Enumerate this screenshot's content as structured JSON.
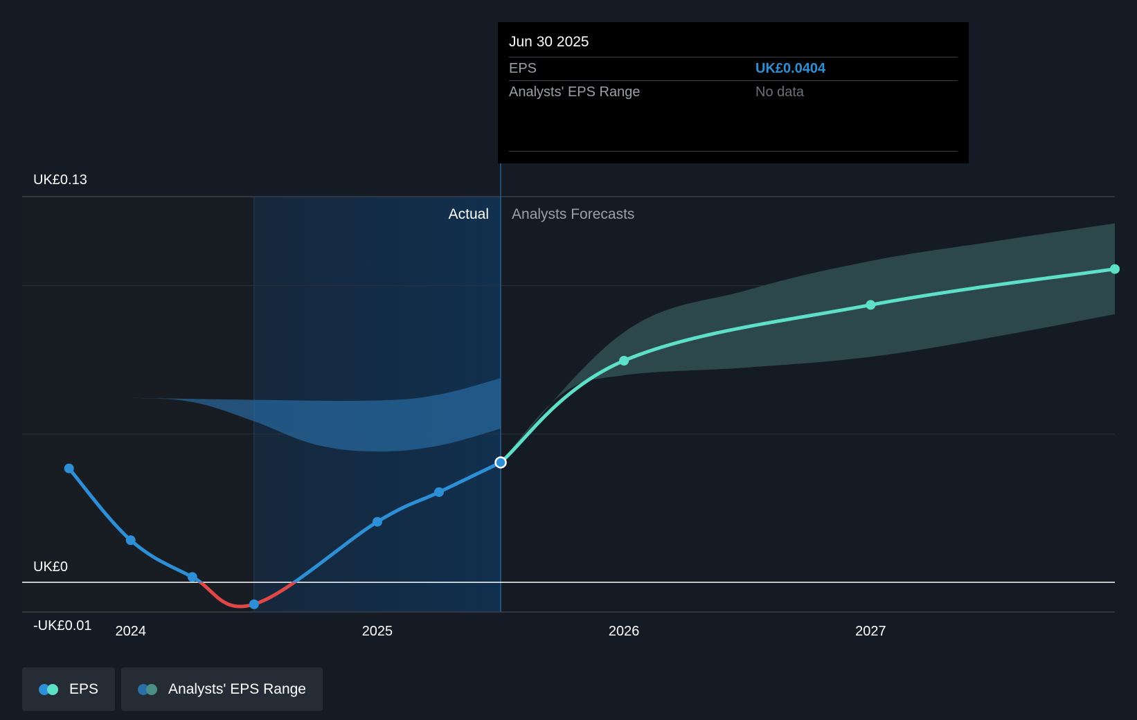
{
  "chart_data": {
    "type": "line",
    "y_ticks": [
      {
        "value": 0.13,
        "label": "UK£0.13"
      },
      {
        "value": 0,
        "label": "UK£0"
      },
      {
        "value": -0.01,
        "label": "-UK£0.01"
      }
    ],
    "x_ticks": [
      {
        "value": 2024.0,
        "label": "2024"
      },
      {
        "value": 2025.0,
        "label": "2025"
      },
      {
        "value": 2026.0,
        "label": "2026"
      },
      {
        "value": 2027.0,
        "label": "2027"
      }
    ],
    "ylim": [
      -0.01,
      0.13
    ],
    "xlim": [
      2023.56,
      2027.99
    ],
    "grid_values": [
      0.1,
      0.05
    ],
    "region_labels": {
      "actual": "Actual",
      "forecast": "Analysts Forecasts"
    },
    "divider_x": 2025.5,
    "highlight_start": 2024.5,
    "series": [
      {
        "name": "EPS",
        "kind": "actual",
        "color": "#2d8fd6",
        "negative_color": "#e04848",
        "points": [
          {
            "x": 2023.75,
            "y": 0.0384
          },
          {
            "x": 2024.0,
            "y": 0.0142
          },
          {
            "x": 2024.25,
            "y": 0.0018
          },
          {
            "x": 2024.5,
            "y": -0.0074
          },
          {
            "x": 2025.0,
            "y": 0.0204
          },
          {
            "x": 2025.25,
            "y": 0.0304
          },
          {
            "x": 2025.5,
            "y": 0.0404
          }
        ]
      },
      {
        "name": "EPS",
        "kind": "forecast",
        "color": "#5ee0c8",
        "points": [
          {
            "x": 2025.5,
            "y": 0.0404
          },
          {
            "x": 2026.0,
            "y": 0.0747
          },
          {
            "x": 2027.0,
            "y": 0.0935
          },
          {
            "x": 2027.99,
            "y": 0.1056
          }
        ]
      }
    ],
    "analyst_range_past": {
      "color": "#2a6fa8",
      "upper": [
        {
          "x": 2024.0,
          "y": 0.0622
        },
        {
          "x": 2024.5,
          "y": 0.0615
        },
        {
          "x": 2025.0,
          "y": 0.0613
        },
        {
          "x": 2025.25,
          "y": 0.0633
        },
        {
          "x": 2025.5,
          "y": 0.0688
        }
      ],
      "lower": [
        {
          "x": 2024.0,
          "y": 0.0622
        },
        {
          "x": 2024.25,
          "y": 0.0608
        },
        {
          "x": 2024.5,
          "y": 0.0543
        },
        {
          "x": 2024.75,
          "y": 0.0464
        },
        {
          "x": 2025.0,
          "y": 0.0441
        },
        {
          "x": 2025.25,
          "y": 0.0461
        },
        {
          "x": 2025.5,
          "y": 0.0518
        }
      ]
    },
    "analyst_range_forecast": {
      "color": "#2e4b4f",
      "upper": [
        {
          "x": 2025.5,
          "y": 0.0404
        },
        {
          "x": 2026.0,
          "y": 0.0843
        },
        {
          "x": 2026.5,
          "y": 0.0985
        },
        {
          "x": 2027.0,
          "y": 0.1083
        },
        {
          "x": 2027.5,
          "y": 0.1149
        },
        {
          "x": 2027.99,
          "y": 0.121
        }
      ],
      "lower": [
        {
          "x": 2025.5,
          "y": 0.0404
        },
        {
          "x": 2025.75,
          "y": 0.0635
        },
        {
          "x": 2026.0,
          "y": 0.0698
        },
        {
          "x": 2026.5,
          "y": 0.0724
        },
        {
          "x": 2027.0,
          "y": 0.076
        },
        {
          "x": 2027.5,
          "y": 0.0827
        },
        {
          "x": 2027.99,
          "y": 0.0904
        }
      ]
    },
    "highlight_point": {
      "x": 2025.5,
      "y": 0.0404
    }
  },
  "tooltip": {
    "date": "Jun 30 2025",
    "rows": [
      {
        "key": "EPS",
        "value": "UK£0.0404"
      },
      {
        "key": "Analysts' EPS Range",
        "value": "No data"
      }
    ]
  },
  "legend": {
    "items": [
      {
        "label": "EPS",
        "colors": [
          "#2d8fd6",
          "#5ee0c8"
        ]
      },
      {
        "label": "Analysts' EPS Range",
        "colors": [
          "#2a6fa8",
          "#4a8f86"
        ]
      }
    ]
  }
}
